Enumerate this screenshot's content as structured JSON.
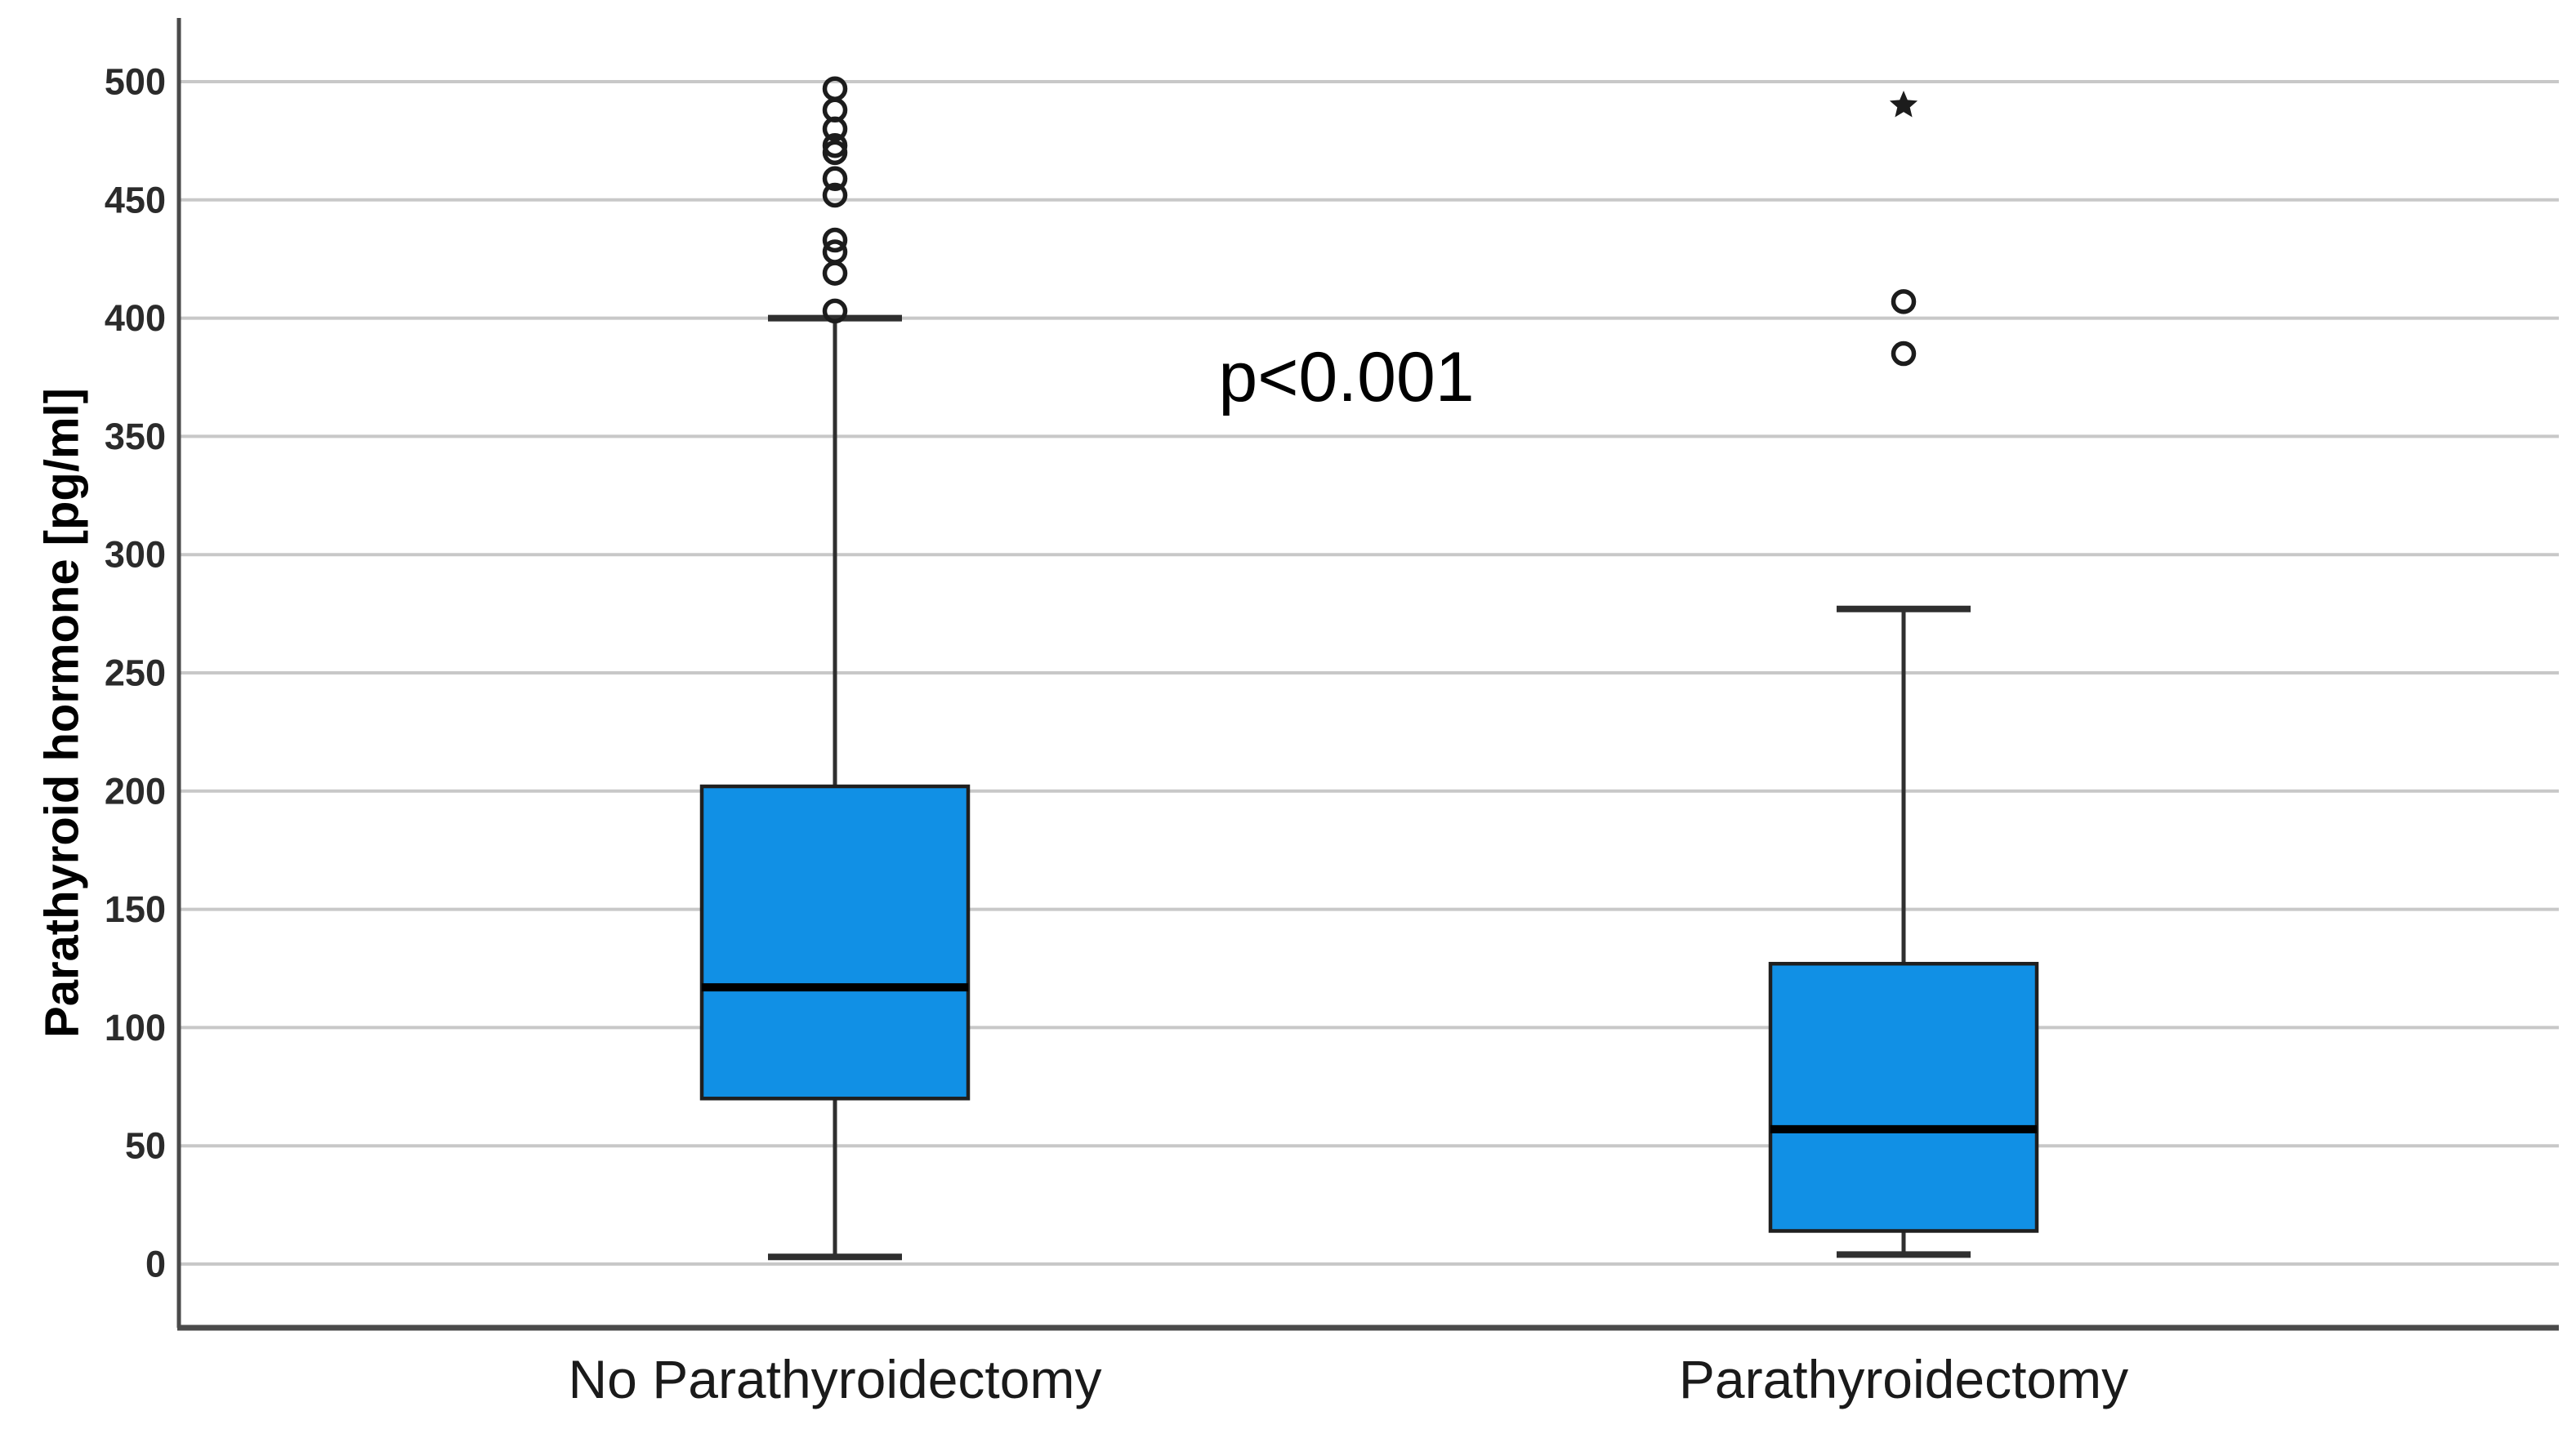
{
  "chart_data": {
    "type": "boxplot",
    "title": "",
    "ylabel": "Parathyroid hormone [pg/ml]",
    "xlabel": "",
    "ylim": [
      0,
      500
    ],
    "ytick_step": 50,
    "yticks": [
      0,
      50,
      100,
      150,
      200,
      250,
      300,
      350,
      400,
      450,
      500
    ],
    "grid": "horizontal",
    "legend": "none",
    "annotation": {
      "text": "p<0.001",
      "y_value": 375
    },
    "categories": [
      "No Parathyroidectomy",
      "Parathyroidectomy"
    ],
    "series": [
      {
        "name": "No Parathyroidectomy",
        "whisker_low": 3,
        "q1": 70,
        "median": 117,
        "q3": 202,
        "whisker_high": 400,
        "outliers": [
          403,
          419,
          428,
          433,
          452,
          459,
          470,
          473,
          480,
          488,
          497
        ],
        "extreme_outliers": []
      },
      {
        "name": "Parathyroidectomy",
        "whisker_low": 4,
        "q1": 14,
        "median": 57,
        "q3": 127,
        "whisker_high": 277,
        "outliers": [
          385,
          407
        ],
        "extreme_outliers": [
          490
        ]
      }
    ],
    "colors": {
      "box_fill": "#1190e5",
      "box_border": "#1f1f1f",
      "median": "#000000",
      "whisker": "#2f2f2f",
      "outlier": "#1c1c1c",
      "extreme_outlier": "#1c1c1c",
      "grid": "#c8c8c8",
      "axis": "#4a4a4a",
      "tick_text": "#2b2b2b",
      "category_text": "#1a1a1a",
      "annotation_text": "#000000",
      "background": "#ffffff"
    }
  }
}
